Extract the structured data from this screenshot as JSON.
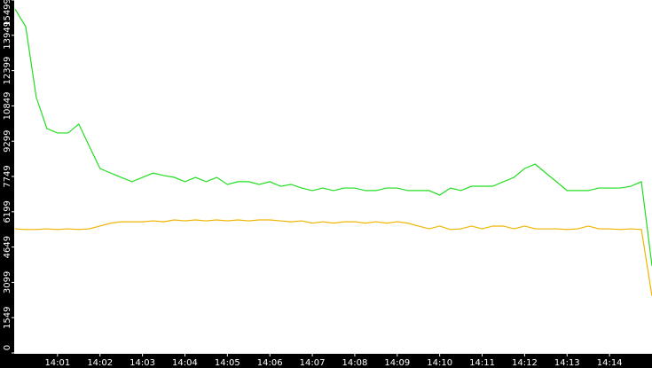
{
  "chart_data": {
    "type": "line",
    "x": [
      0,
      0.25,
      0.5,
      0.75,
      1,
      1.25,
      1.5,
      1.75,
      2,
      2.25,
      2.5,
      2.75,
      3,
      3.25,
      3.5,
      3.75,
      4,
      4.25,
      4.5,
      4.75,
      5,
      5.25,
      5.5,
      5.75,
      6,
      6.25,
      6.5,
      6.75,
      7,
      7.25,
      7.5,
      7.75,
      8,
      8.25,
      8.5,
      8.75,
      9,
      9.25,
      9.5,
      9.75,
      10,
      10.25,
      10.5,
      10.75,
      11,
      11.25,
      11.5,
      11.75,
      12,
      12.25,
      12.5,
      12.75,
      13,
      13.25,
      13.5,
      13.75,
      14,
      14.25,
      14.5,
      14.75,
      15
    ],
    "series": [
      {
        "color": "#22dd22",
        "values": [
          15100,
          14330,
          11215,
          9850,
          9660,
          9660,
          10050,
          9070,
          8100,
          7900,
          7710,
          7520,
          7710,
          7900,
          7790,
          7710,
          7520,
          7710,
          7520,
          7710,
          7400,
          7520,
          7520,
          7400,
          7520,
          7320,
          7400,
          7240,
          7130,
          7240,
          7130,
          7240,
          7240,
          7130,
          7130,
          7240,
          7240,
          7130,
          7130,
          7130,
          6930,
          7240,
          7130,
          7320,
          7320,
          7320,
          7520,
          7710,
          8100,
          8290,
          7900,
          7520,
          7130,
          7130,
          7130,
          7240,
          7240,
          7240,
          7320,
          7520,
          3820
        ]
      },
      {
        "color": "#f0b400",
        "values": [
          5450,
          5420,
          5420,
          5450,
          5420,
          5450,
          5420,
          5450,
          5570,
          5700,
          5760,
          5760,
          5760,
          5800,
          5760,
          5840,
          5800,
          5840,
          5800,
          5840,
          5800,
          5840,
          5800,
          5840,
          5840,
          5800,
          5760,
          5800,
          5700,
          5760,
          5700,
          5760,
          5760,
          5700,
          5760,
          5700,
          5760,
          5700,
          5570,
          5450,
          5570,
          5420,
          5450,
          5570,
          5450,
          5570,
          5570,
          5450,
          5570,
          5450,
          5450,
          5450,
          5420,
          5450,
          5570,
          5450,
          5450,
          5420,
          5450,
          5420,
          2500
        ]
      }
    ],
    "xlim": [
      0,
      15
    ],
    "xticks": [
      {
        "value": 1,
        "label": "14:01"
      },
      {
        "value": 2,
        "label": "14:02"
      },
      {
        "value": 3,
        "label": "14:03"
      },
      {
        "value": 4,
        "label": "14:04"
      },
      {
        "value": 5,
        "label": "14:05"
      },
      {
        "value": 6,
        "label": "14:06"
      },
      {
        "value": 7,
        "label": "14:07"
      },
      {
        "value": 8,
        "label": "14:08"
      },
      {
        "value": 9,
        "label": "14:09"
      },
      {
        "value": 10,
        "label": "14:10"
      },
      {
        "value": 11,
        "label": "14:11"
      },
      {
        "value": 12,
        "label": "14:12"
      },
      {
        "value": 13,
        "label": "14:13"
      },
      {
        "value": 14,
        "label": "14:14"
      }
    ],
    "ylim": [
      0,
      15499
    ],
    "yticks": [
      0,
      1549,
      3099,
      4649,
      6199,
      7749,
      9299,
      10849,
      12399,
      13949,
      15499
    ]
  }
}
